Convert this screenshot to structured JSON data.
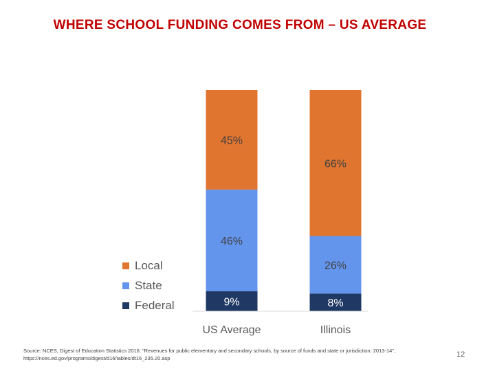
{
  "page": {
    "title": "WHERE SCHOOL FUNDING COMES FROM – US AVERAGE",
    "source_line1": "Source: NCES, Digest of Education Statistics 2016: \"Revenues for public elementary and secondary schools, by source of funds and state or jurisdiction: 2013-14\",",
    "source_line2": "https://nces.ed.gov/programs/digest/d16/tables/dt16_235.20.asp",
    "page_number": "12"
  },
  "chart_data": {
    "type": "bar",
    "stacked": true,
    "percent": true,
    "categories": [
      "US Average",
      "Illinois"
    ],
    "series": [
      {
        "name": "Federal",
        "values": [
          9,
          8
        ],
        "labels": [
          "9%",
          "8%"
        ],
        "color": "#203864"
      },
      {
        "name": "State",
        "values": [
          46,
          26
        ],
        "labels": [
          "46%",
          "26%"
        ],
        "color": "#6495ed"
      },
      {
        "name": "Local",
        "values": [
          45,
          66
        ],
        "labels": [
          "45%",
          "66%"
        ],
        "color": "#e07530"
      }
    ],
    "legend": {
      "position": "left",
      "order": [
        "Local",
        "State",
        "Federal"
      ]
    },
    "ylim": [
      0,
      100
    ],
    "grid": false
  }
}
